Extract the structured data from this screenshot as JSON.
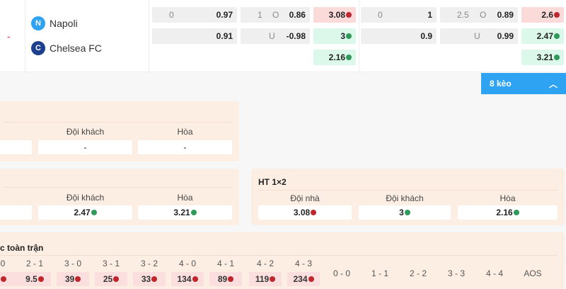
{
  "match": {
    "score": "-",
    "home": "Napoli",
    "away": "Chelsea FC",
    "rows": [
      {
        "hcp_line": "0",
        "hcp_odds": "0.97",
        "ou_line": "1",
        "ou_side": "O",
        "ou_odds": "0.86",
        "x12": "3.08",
        "x12_trend": "down",
        "h2_line": "0",
        "h2_odds": "1",
        "h2_ou_line": "2.5",
        "h2_ou_side": "O",
        "h2_ou_odds": "0.89",
        "h2_x12": "2.6",
        "h2_x12_trend": "down"
      },
      {
        "hcp_line": "",
        "hcp_odds": "0.91",
        "ou_line": "",
        "ou_side": "U",
        "ou_odds": "-0.98",
        "x12": "3",
        "x12_trend": "up",
        "h2_line": "",
        "h2_odds": "0.9",
        "h2_ou_line": "",
        "h2_ou_side": "U",
        "h2_ou_odds": "0.99",
        "h2_x12": "2.47",
        "h2_x12_trend": "up"
      },
      {
        "x12": "2.16",
        "x12_trend": "up",
        "h2_x12": "3.21",
        "h2_x12_trend": "up"
      }
    ]
  },
  "more_button": {
    "label": "8 kèo",
    "icon": "chevron-up-icon"
  },
  "panel1": {
    "headers": [
      "Đội khách",
      "Hòa"
    ],
    "values": [
      "",
      "-",
      "-"
    ]
  },
  "panel2": {
    "headers": [
      "Đội khách",
      "Hòa"
    ],
    "values": [
      "",
      "2.47",
      "3.21"
    ],
    "trends": [
      "down",
      "up",
      "up"
    ]
  },
  "panel3": {
    "title": "HT 1×2",
    "headers": [
      "Đội nhà",
      "Đội khách",
      "Hòa"
    ],
    "values": [
      "3.08",
      "3",
      "2.16"
    ],
    "trends": [
      "down",
      "up",
      "up"
    ]
  },
  "scores": {
    "title": "c toàn trận",
    "home_headers": [
      "0",
      "2 - 1",
      "3 - 0",
      "3 - 1",
      "3 - 2",
      "4 - 0",
      "4 - 1",
      "4 - 2",
      "4 - 3"
    ],
    "home_values": [
      "",
      "9.5",
      "39",
      "25",
      "33",
      "134",
      "89",
      "119",
      "234"
    ],
    "draw_headers": [
      "0 - 0",
      "1 - 1",
      "2 - 2",
      "3 - 3",
      "4 - 4",
      "AOS"
    ]
  },
  "colors": {
    "accent": "#2ea3f2",
    "down": "#c0262d",
    "up": "#2f9a5a",
    "panel": "#fdeee3"
  }
}
